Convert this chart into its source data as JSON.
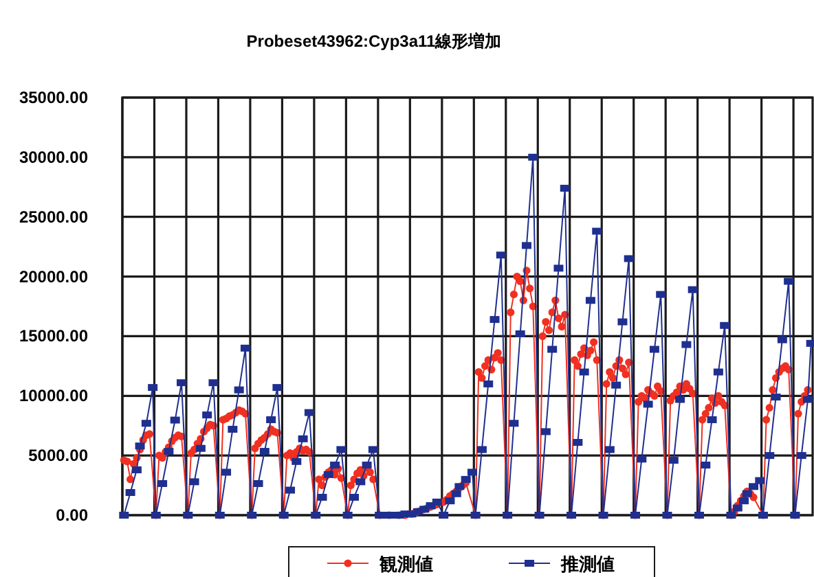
{
  "chart_data": {
    "type": "line",
    "title": "Probeset43962:Cyp3a11線形増加",
    "categories": [
      null,
      null,
      null,
      null,
      null,
      null,
      null,
      null,
      null,
      null,
      null,
      null,
      null,
      null,
      null,
      null,
      null,
      null,
      null,
      null,
      null,
      null,
      null,
      null,
      null,
      null,
      null,
      null,
      null,
      null,
      null,
      null,
      null,
      null,
      null,
      null,
      null,
      null,
      null,
      null,
      null,
      null,
      null,
      null,
      null,
      null,
      null,
      null,
      null,
      null,
      null,
      null,
      null,
      null,
      null,
      null,
      null,
      null,
      null,
      null,
      null,
      null,
      null,
      null,
      null,
      null,
      null,
      null,
      null,
      null,
      null,
      null,
      null,
      null,
      null,
      null,
      null,
      null,
      null,
      null,
      null,
      null,
      null,
      null,
      null,
      null,
      null,
      null,
      null,
      null,
      null,
      null,
      null,
      null,
      null,
      null,
      null,
      null,
      null,
      null,
      null,
      null,
      null,
      null,
      null,
      null,
      null,
      null,
      null,
      null,
      null,
      null,
      null,
      null,
      null,
      null,
      null,
      null,
      null,
      null,
      null,
      null,
      null,
      null,
      null,
      null,
      null,
      null,
      null,
      null,
      null,
      null,
      null,
      null,
      null,
      null,
      null,
      null,
      null,
      null,
      null,
      null,
      null,
      null,
      null,
      null,
      null,
      null,
      null,
      null,
      null,
      null,
      null,
      null,
      null,
      null,
      null,
      null,
      null,
      null,
      null,
      null,
      null,
      null,
      null,
      null,
      null,
      null,
      null,
      null,
      null,
      null,
      null,
      null,
      null,
      null,
      null,
      null,
      null,
      null,
      null,
      null,
      null,
      null,
      null,
      null,
      null,
      null,
      null,
      null,
      null,
      null,
      null,
      null,
      null,
      null,
      null,
      null,
      null,
      null,
      null,
      null,
      null,
      null,
      null,
      null,
      null,
      null,
      null,
      null,
      null,
      null,
      null,
      null,
      null,
      null
    ],
    "ylim": [
      0,
      35000
    ],
    "yticks": [
      {
        "value": 0,
        "label": "0.00"
      },
      {
        "value": 5000,
        "label": "5000.00"
      },
      {
        "value": 10000,
        "label": "10000.00"
      },
      {
        "value": 15000,
        "label": "15000.00"
      },
      {
        "value": 20000,
        "label": "20000.00"
      },
      {
        "value": 25000,
        "label": "25000.00"
      },
      {
        "value": 30000,
        "label": "30000.00"
      },
      {
        "value": 35000,
        "label": "35000.00"
      }
    ],
    "tick_labels": "y",
    "grid": true,
    "legend": "bottom",
    "line_style": "solid",
    "series": [
      {
        "name": "観測値",
        "color": "#f03020",
        "marker": "circle",
        "values": [
          4600,
          4500,
          3000,
          4300,
          4800,
          5500,
          6300,
          6700,
          6800,
          null,
          0,
          5000,
          4800,
          5300,
          5700,
          6200,
          6500,
          6700,
          6600,
          null,
          0,
          5200,
          5500,
          6000,
          6400,
          7000,
          7300,
          7600,
          7500,
          null,
          0,
          8000,
          8100,
          8300,
          8400,
          8600,
          8800,
          8700,
          8500,
          null,
          0,
          5600,
          6000,
          6300,
          6500,
          6800,
          7200,
          7000,
          6900,
          null,
          0,
          5000,
          5200,
          4800,
          5300,
          5600,
          5400,
          5500,
          5300,
          null,
          0,
          3000,
          2500,
          3200,
          3600,
          3800,
          3400,
          3900,
          3100,
          null,
          0,
          2500,
          3000,
          3500,
          3800,
          3300,
          4000,
          3600,
          3000,
          null,
          0,
          null,
          null,
          0,
          null,
          null,
          0,
          null,
          0,
          null,
          100,
          200,
          300,
          400,
          500,
          600,
          700,
          800,
          900,
          null,
          1100,
          1300,
          1600,
          1800,
          2000,
          2300,
          2500,
          2700,
          null,
          null,
          0,
          12000,
          11500,
          12500,
          13000,
          12200,
          13200,
          13600,
          13000,
          null,
          0,
          17000,
          18500,
          20000,
          19600,
          18000,
          20500,
          19000,
          17500,
          null,
          0,
          15000,
          16200,
          15500,
          17000,
          18000,
          16500,
          15800,
          16800,
          null,
          0,
          13000,
          12500,
          13500,
          14000,
          13400,
          13800,
          14500,
          13000,
          null,
          0,
          11000,
          12000,
          11500,
          12500,
          13000,
          12300,
          11800,
          12800,
          null,
          0,
          9500,
          10000,
          9800,
          10500,
          10200,
          10000,
          10800,
          10400,
          null,
          0,
          9600,
          10000,
          10300,
          10800,
          10500,
          11000,
          10600,
          10200,
          null,
          0,
          8000,
          8500,
          9000,
          9800,
          9400,
          10000,
          9500,
          9200,
          null,
          0,
          300,
          800,
          1200,
          1600,
          2000,
          1800,
          1500,
          null,
          null,
          0,
          8000,
          9000,
          10500,
          11500,
          12000,
          12300,
          12500,
          12200,
          null,
          0,
          8500,
          9500,
          10000,
          10500,
          null
        ]
      },
      {
        "name": "推測値",
        "color": "#1f2f8f",
        "marker": "square",
        "values": [
          0,
          null,
          1900,
          null,
          3800,
          5800,
          null,
          7700,
          null,
          10700,
          0,
          null,
          2650,
          null,
          5350,
          null,
          7970,
          null,
          11100,
          null,
          0,
          null,
          2800,
          null,
          5600,
          null,
          8400,
          null,
          11100,
          null,
          0,
          null,
          3600,
          null,
          7200,
          null,
          10500,
          null,
          14000,
          null,
          0,
          null,
          2650,
          null,
          5350,
          null,
          8000,
          null,
          10700,
          null,
          0,
          null,
          2100,
          null,
          4500,
          null,
          6400,
          null,
          8600,
          null,
          0,
          null,
          1500,
          null,
          3400,
          null,
          4200,
          null,
          5500,
          null,
          0,
          null,
          1500,
          null,
          2800,
          null,
          4200,
          null,
          5500,
          null,
          0,
          null,
          0,
          null,
          0,
          null,
          0,
          null,
          100,
          null,
          100,
          null,
          300,
          null,
          500,
          null,
          800,
          null,
          1100,
          null,
          0,
          null,
          1200,
          null,
          1800,
          2400,
          null,
          3000,
          null,
          3600,
          0,
          null,
          5500,
          null,
          11000,
          null,
          16400,
          null,
          21800,
          null,
          0,
          null,
          7700,
          null,
          15200,
          null,
          22600,
          null,
          30000,
          null,
          0,
          null,
          7000,
          null,
          13900,
          null,
          20700,
          null,
          27400,
          null,
          0,
          null,
          6100,
          null,
          12000,
          null,
          18000,
          null,
          23800,
          null,
          0,
          null,
          5500,
          null,
          10900,
          null,
          16200,
          null,
          21500,
          null,
          0,
          null,
          4700,
          null,
          9300,
          null,
          13900,
          null,
          18500,
          null,
          0,
          null,
          4600,
          null,
          9700,
          null,
          14300,
          null,
          18900,
          null,
          0,
          null,
          4200,
          null,
          8000,
          null,
          12000,
          null,
          15900,
          null,
          0,
          null,
          600,
          null,
          1200,
          1800,
          null,
          2400,
          null,
          2900,
          0,
          null,
          5000,
          null,
          9900,
          null,
          14700,
          null,
          19600,
          null,
          0,
          null,
          5000,
          null,
          9700,
          14400
        ]
      }
    ]
  }
}
